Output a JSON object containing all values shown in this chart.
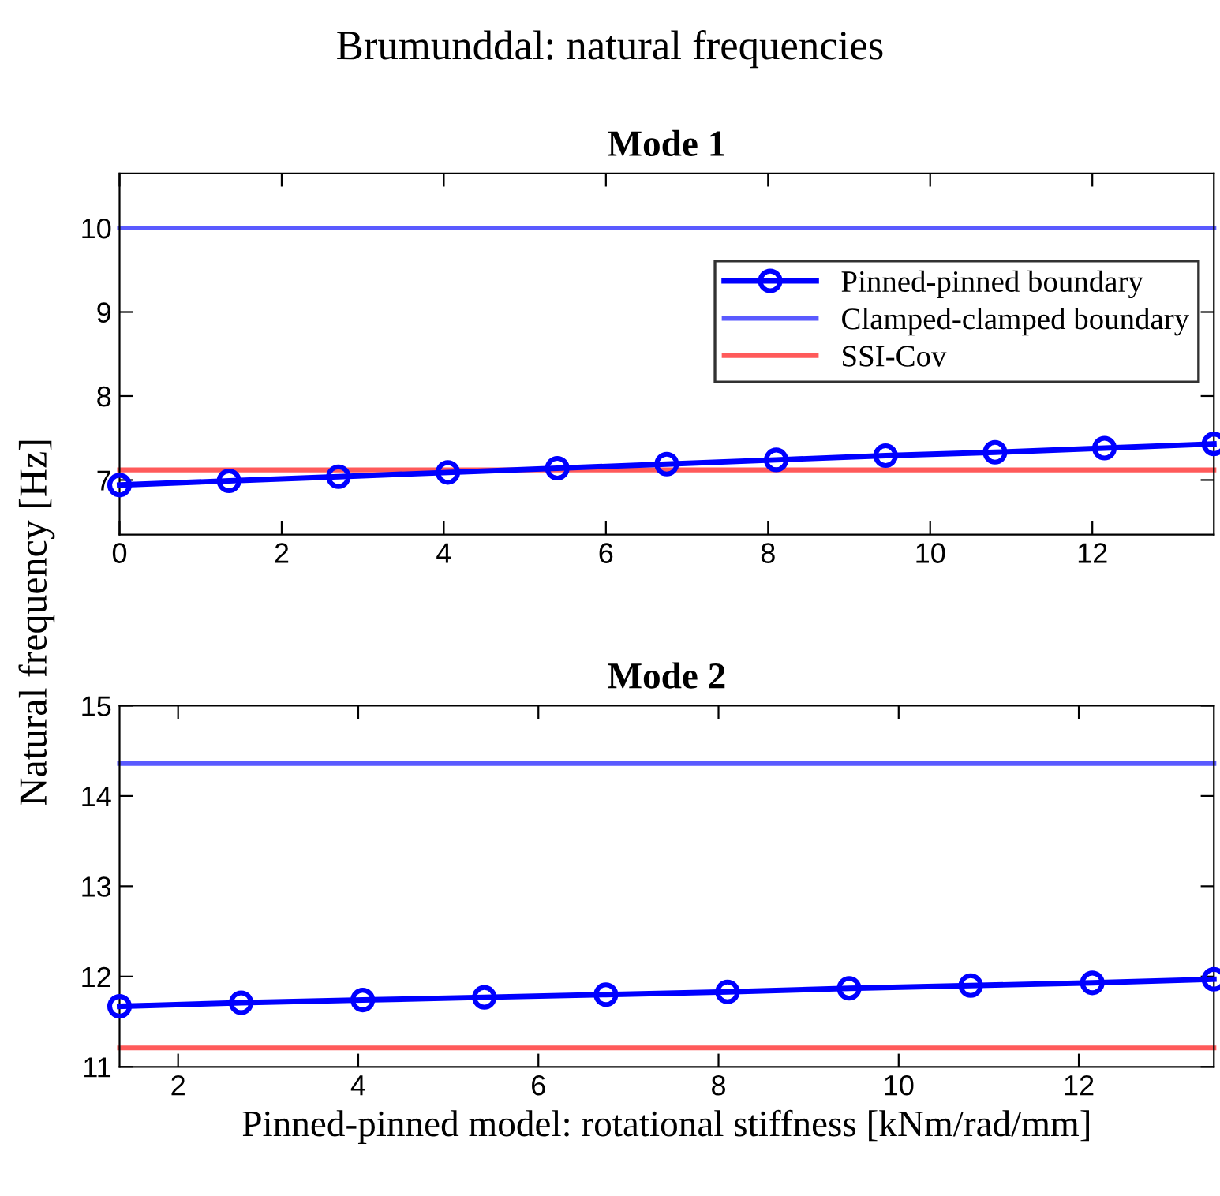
{
  "chart_data": [
    {
      "type": "line",
      "title": "Mode 1",
      "annotations": [
        "Brumunddal: natural frequencies"
      ],
      "ylabel": "Natural frequency [Hz]",
      "x": [
        0,
        1.35,
        2.7,
        4.05,
        5.4,
        6.75,
        8.1,
        9.45,
        10.8,
        12.15,
        13.5
      ],
      "series": [
        {
          "name": "Pinned-pinned boundary",
          "color": "#0000ff",
          "marker": "circle",
          "values": [
            6.94,
            6.99,
            7.04,
            7.09,
            7.14,
            7.19,
            7.24,
            7.29,
            7.33,
            7.38,
            7.43
          ]
        },
        {
          "name": "Clamped-clamped boundary",
          "color": "#5a5aff",
          "x": [
            0,
            13.5
          ],
          "values": [
            10.0,
            10.0
          ]
        },
        {
          "name": "SSI-Cov",
          "color": "#ff5a5a",
          "x": [
            0,
            13.5
          ],
          "values": [
            7.12,
            7.12
          ]
        }
      ],
      "xlim": [
        0,
        13.5
      ],
      "xticks": [
        0,
        2,
        4,
        6,
        8,
        10,
        12
      ],
      "ylim": [
        6.35,
        10.65
      ],
      "yticks": [
        7,
        8,
        9,
        10
      ],
      "grid": false,
      "legend": "top right"
    },
    {
      "type": "line",
      "title": "Mode 2",
      "xlabel": "Pinned-pinned model: rotational stiffness [kNm/rad/mm]",
      "x": [
        1.35,
        2.7,
        4.05,
        5.4,
        6.75,
        8.1,
        9.45,
        10.8,
        12.15,
        13.5
      ],
      "series": [
        {
          "color": "#0000ff",
          "marker": "circle",
          "values": [
            11.67,
            11.71,
            11.74,
            11.77,
            11.8,
            11.83,
            11.87,
            11.9,
            11.93,
            11.97
          ]
        },
        {
          "color": "#5a5aff",
          "x": [
            1.35,
            13.5
          ],
          "values": [
            14.36,
            14.36
          ]
        },
        {
          "color": "#ff5a5a",
          "x": [
            1.35,
            13.5
          ],
          "values": [
            11.21,
            11.21
          ]
        }
      ],
      "xlim": [
        1.35,
        13.5
      ],
      "xticks": [
        2,
        4,
        6,
        8,
        10,
        12
      ],
      "ylim": [
        11,
        15
      ],
      "yticks": [
        11,
        12,
        13,
        14,
        15
      ],
      "grid": false
    }
  ]
}
